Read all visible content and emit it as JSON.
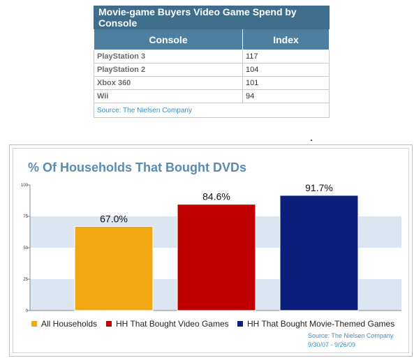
{
  "table": {
    "title": "Movie-game Buyers Video Game Spend by Console",
    "headers": [
      "Console",
      "Index"
    ],
    "rows": [
      [
        "PlayStation 3",
        "117"
      ],
      [
        "PlayStation 2",
        "104"
      ],
      [
        "Xbox 360",
        "101"
      ],
      [
        "Wii",
        "94"
      ]
    ],
    "source": "Source: The Nielsen Company"
  },
  "chart": {
    "title": "% Of Households That Bought DVDs",
    "source_line1": "Source: The Nielsen Company",
    "source_line2": "9/30/07 - 9/26/09"
  },
  "chart_data": [
    {
      "type": "table",
      "title": "Movie-game Buyers Video Game Spend by Console",
      "columns": [
        "Console",
        "Index"
      ],
      "rows": [
        [
          "PlayStation 3",
          117
        ],
        [
          "PlayStation 2",
          104
        ],
        [
          "Xbox 360",
          101
        ],
        [
          "Wii",
          94
        ]
      ]
    },
    {
      "type": "bar",
      "title": "% Of Households That Bought DVDs",
      "categories": [
        "All Households",
        "HH That Bought Video Games",
        "HH That Bought Movie-Themed Games"
      ],
      "values": [
        67.0,
        84.6,
        91.7
      ],
      "value_labels": [
        "67.0%",
        "84.6%",
        "91.7%"
      ],
      "colors": [
        "#f0a912",
        "#c00000",
        "#0a1f7a"
      ],
      "ylim": [
        0,
        100
      ],
      "yticks": [
        "0",
        "25",
        "50",
        "75",
        "100"
      ],
      "grid": "alternating horizontal bands",
      "legend": "bottom",
      "xlabel": "",
      "ylabel": ""
    }
  ]
}
